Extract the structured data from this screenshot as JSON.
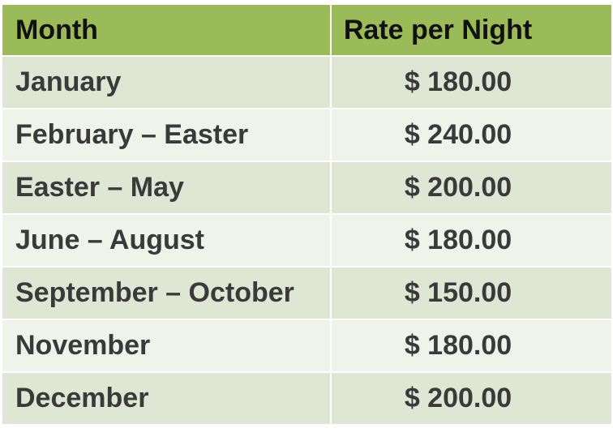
{
  "table": {
    "headers": {
      "month": "Month",
      "rate": "Rate per Night"
    },
    "rows": [
      {
        "month": "January",
        "rate": "$ 180.00"
      },
      {
        "month": "February – Easter",
        "rate": "$ 240.00"
      },
      {
        "month": "Easter – May",
        "rate": "$ 200.00"
      },
      {
        "month": "June – August",
        "rate": "$ 180.00"
      },
      {
        "month": "September – October",
        "rate": "$ 150.00"
      },
      {
        "month": "November",
        "rate": "$ 180.00"
      },
      {
        "month": "December",
        "rate": "$ 200.00"
      }
    ]
  },
  "colors": {
    "header_bg": "#9bbb59",
    "row_odd_bg": "#dfe6d3",
    "row_even_bg": "#eff3ea",
    "header_text": "#111111",
    "body_text": "#3a3a3a"
  }
}
